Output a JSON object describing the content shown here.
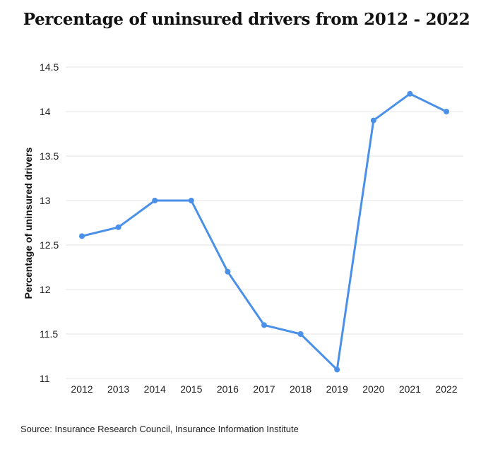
{
  "chart_data": {
    "type": "line",
    "title": "Percentage of uninsured drivers from 2012 - 2022",
    "xlabel": "",
    "ylabel": "Percentage of uninsured drivers",
    "categories": [
      "2012",
      "2013",
      "2014",
      "2015",
      "2016",
      "2017",
      "2018",
      "2019",
      "2020",
      "2021",
      "2022"
    ],
    "series": [
      {
        "name": "Percentage of uninsured drivers",
        "values": [
          12.6,
          12.7,
          13.0,
          13.0,
          12.2,
          11.6,
          11.5,
          11.1,
          13.9,
          14.2,
          14.0
        ],
        "color": "#4a90e8"
      }
    ],
    "yticks": [
      "11",
      "11.5",
      "12",
      "12.5",
      "13",
      "13.5",
      "14",
      "14.5"
    ],
    "ylim": [
      11,
      14.5
    ],
    "grid": true,
    "legend": "none"
  },
  "source": "Source: Insurance Research Council, Insurance Information Institute",
  "colors": {
    "line": "#4a90e8",
    "grid": "#e6e6e6"
  }
}
